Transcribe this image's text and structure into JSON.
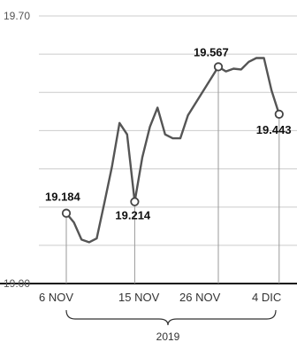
{
  "chart_data": {
    "type": "line",
    "series": [
      {
        "values": [
          {
            "x": "2019-11-06",
            "y": 19.184
          },
          {
            "x": "2019-11-07",
            "y": 19.16
          },
          {
            "x": "2019-11-08",
            "y": 19.115
          },
          {
            "x": "2019-11-09",
            "y": 19.108
          },
          {
            "x": "2019-11-10",
            "y": 19.118
          },
          {
            "x": "2019-11-11",
            "y": 19.21
          },
          {
            "x": "2019-11-12",
            "y": 19.305
          },
          {
            "x": "2019-11-13",
            "y": 19.42
          },
          {
            "x": "2019-11-14",
            "y": 19.39
          },
          {
            "x": "2019-11-15",
            "y": 19.214
          },
          {
            "x": "2019-11-16",
            "y": 19.33
          },
          {
            "x": "2019-11-17",
            "y": 19.41
          },
          {
            "x": "2019-11-18",
            "y": 19.46
          },
          {
            "x": "2019-11-19",
            "y": 19.39
          },
          {
            "x": "2019-11-20",
            "y": 19.38
          },
          {
            "x": "2019-11-21",
            "y": 19.38
          },
          {
            "x": "2019-11-22",
            "y": 19.44
          },
          {
            "x": "2019-11-26",
            "y": 19.567
          },
          {
            "x": "2019-11-27",
            "y": 19.555
          },
          {
            "x": "2019-11-28",
            "y": 19.562
          },
          {
            "x": "2019-11-29",
            "y": 19.56
          },
          {
            "x": "2019-11-30",
            "y": 19.58
          },
          {
            "x": "2019-12-01",
            "y": 19.59
          },
          {
            "x": "2019-12-02",
            "y": 19.59
          },
          {
            "x": "2019-12-03",
            "y": 19.505
          },
          {
            "x": "2019-12-04",
            "y": 19.443
          }
        ]
      }
    ],
    "x_ticks": [
      "6 NOV",
      "15 NOV",
      "26 NOV",
      "4 DIC"
    ],
    "x_group_label": "2019",
    "y_ticks": [
      "19.70",
      "19.00"
    ],
    "ylim": [
      19.0,
      19.7
    ],
    "grid": true,
    "annotations": [
      {
        "x": "2019-11-06",
        "label": "19.184"
      },
      {
        "x": "2019-11-15",
        "label": "19.214"
      },
      {
        "x": "2019-11-26",
        "label": "19.567"
      },
      {
        "x": "2019-12-04",
        "label": "19.443"
      }
    ],
    "colors": {
      "line": "#555555",
      "grid": "#cccccc",
      "axis": "#111111"
    }
  }
}
